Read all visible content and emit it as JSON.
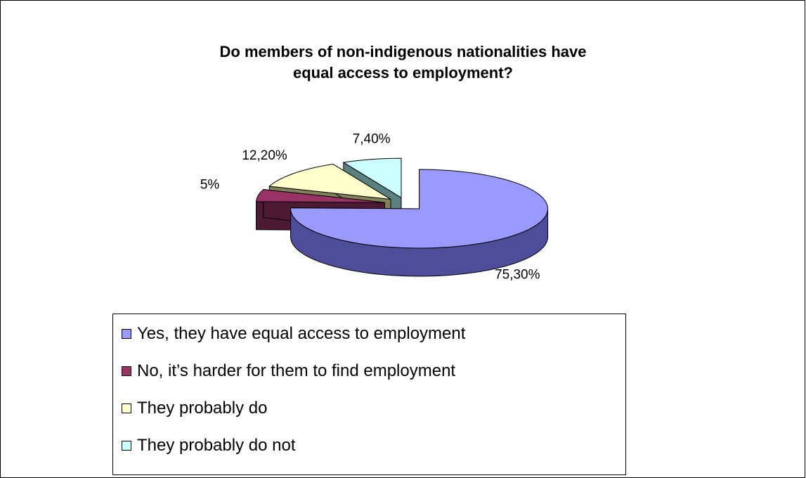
{
  "chart_data": {
    "type": "pie",
    "title": "Do members of non-indigenous nationalities have\nequal access to employment?",
    "categories": [
      "Yes, they have equal access to employment",
      "No, it’s harder for them to find employment",
      "They probably do",
      "They probably do not"
    ],
    "values": [
      75.3,
      5,
      12.2,
      7.4
    ],
    "data_labels": [
      "75,30%",
      "5%",
      "12,20%",
      "7,40%"
    ],
    "colors": [
      "#9999ff",
      "#993366",
      "#ffffcc",
      "#ccffff"
    ],
    "side_colors": [
      "#4d4d99",
      "#4d1a33",
      "#80805a",
      "#5a8080"
    ],
    "style": "3D exploded pie",
    "legend_position": "bottom"
  }
}
